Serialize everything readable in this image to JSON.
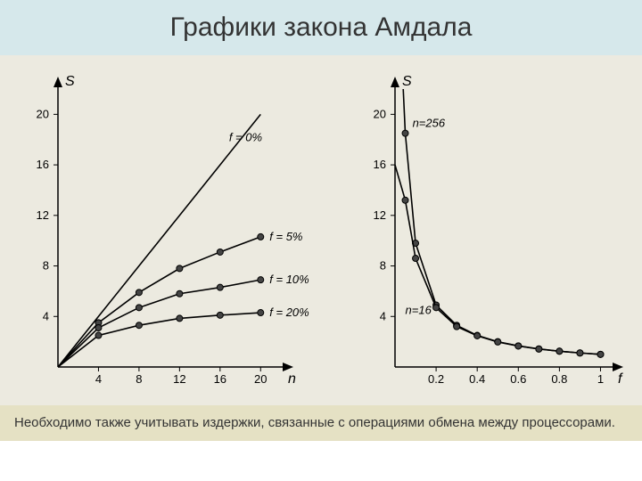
{
  "title": "Графики закона Амдала",
  "footer": "Необходимо также учитывать издержки, связанные с операциями обмена между процессорами.",
  "colors": {
    "title_bg": "#d6e8eb",
    "chart_bg": "#eceae0",
    "footer_bg": "#e5e1c4",
    "axis": "#000000",
    "series": "#000000",
    "marker_fill": "#444444",
    "text": "#000000"
  },
  "left_chart": {
    "type": "line",
    "xlabel": "n",
    "ylabel": "S",
    "xlim": [
      0,
      22
    ],
    "ylim": [
      0,
      22
    ],
    "xticks": [
      4,
      8,
      12,
      16,
      20
    ],
    "yticks": [
      4,
      8,
      12,
      16,
      20
    ],
    "marker_x": [
      4,
      8,
      12,
      16,
      20
    ],
    "label_fontsize": 16,
    "tick_fontsize": 13,
    "series_label_fontsize": 13,
    "marker_radius": 3.5,
    "line_width": 1.6,
    "series": [
      {
        "label": "f = 0%",
        "label_pos": "top",
        "points": [
          [
            0,
            0
          ],
          [
            4,
            4
          ],
          [
            8,
            8
          ],
          [
            12,
            12
          ],
          [
            16,
            16
          ],
          [
            20,
            20
          ]
        ],
        "markers": false
      },
      {
        "label": "f = 5%",
        "points": [
          [
            0,
            0
          ],
          [
            4,
            3.5
          ],
          [
            8,
            5.9
          ],
          [
            12,
            7.8
          ],
          [
            16,
            9.1
          ],
          [
            20,
            10.3
          ]
        ],
        "markers": true
      },
      {
        "label": "f = 10%",
        "points": [
          [
            0,
            0
          ],
          [
            4,
            3.1
          ],
          [
            8,
            4.7
          ],
          [
            12,
            5.8
          ],
          [
            16,
            6.3
          ],
          [
            20,
            6.9
          ]
        ],
        "markers": true
      },
      {
        "label": "f = 20%",
        "points": [
          [
            0,
            0
          ],
          [
            4,
            2.5
          ],
          [
            8,
            3.3
          ],
          [
            12,
            3.85
          ],
          [
            16,
            4.1
          ],
          [
            20,
            4.3
          ]
        ],
        "markers": true
      }
    ]
  },
  "right_chart": {
    "type": "line",
    "xlabel": "f",
    "ylabel": "S",
    "xlim": [
      0,
      1.05
    ],
    "ylim": [
      0,
      22
    ],
    "xticks": [
      0.2,
      0.4,
      0.6,
      0.8,
      1.0
    ],
    "yticks": [
      4,
      8,
      12,
      16,
      20
    ],
    "label_fontsize": 16,
    "tick_fontsize": 13,
    "series_label_fontsize": 13,
    "marker_radius": 3.5,
    "line_width": 1.6,
    "marker_x": [
      0.05,
      0.1,
      0.2,
      0.3,
      0.4,
      0.5,
      0.6,
      0.7,
      0.8,
      0.9,
      1.0
    ],
    "series": [
      {
        "label": "n=256",
        "label_xy": [
          0.085,
          19
        ],
        "points": [
          [
            0.04,
            22
          ],
          [
            0.05,
            18.5
          ],
          [
            0.1,
            9.8
          ],
          [
            0.2,
            4.9
          ],
          [
            0.3,
            3.3
          ],
          [
            0.4,
            2.5
          ],
          [
            0.5,
            2.0
          ],
          [
            0.6,
            1.67
          ],
          [
            0.7,
            1.43
          ],
          [
            0.8,
            1.25
          ],
          [
            0.9,
            1.11
          ],
          [
            1.0,
            1.0
          ]
        ],
        "markers": true
      },
      {
        "label": "n=16",
        "label_xy": [
          0.05,
          4.2
        ],
        "points": [
          [
            0.0,
            16
          ],
          [
            0.05,
            13.2
          ],
          [
            0.1,
            8.6
          ],
          [
            0.2,
            4.7
          ],
          [
            0.3,
            3.2
          ],
          [
            0.4,
            2.47
          ],
          [
            0.5,
            1.98
          ],
          [
            0.6,
            1.66
          ],
          [
            0.7,
            1.42
          ],
          [
            0.8,
            1.25
          ],
          [
            0.9,
            1.11
          ],
          [
            1.0,
            1.0
          ]
        ],
        "markers": true
      }
    ]
  }
}
